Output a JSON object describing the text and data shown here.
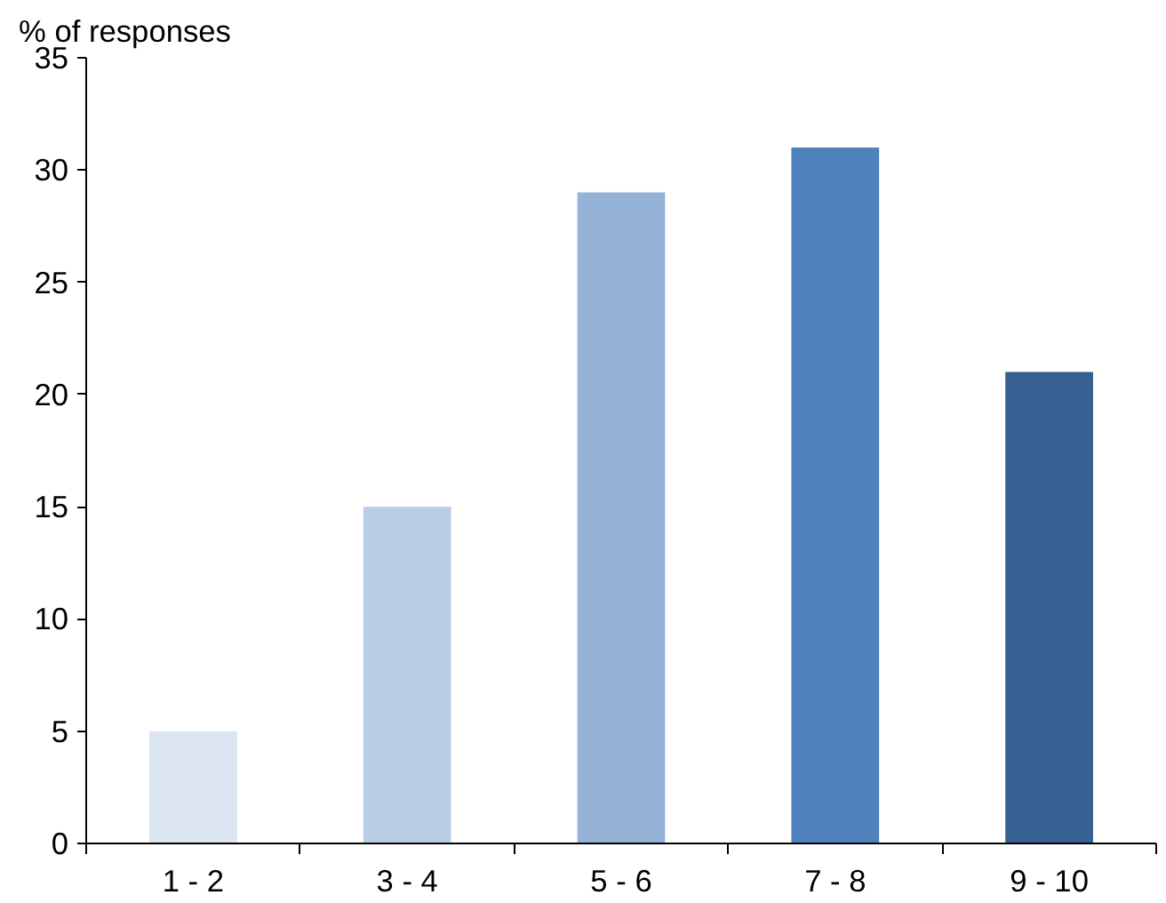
{
  "chart_data": {
    "type": "bar",
    "ylabel": "% of responses",
    "categories": [
      "1 - 2",
      "3 - 4",
      "5 - 6",
      "7 - 8",
      "9 - 10"
    ],
    "values": [
      5,
      15,
      29,
      31,
      21
    ],
    "colors": [
      "#dbe5f1",
      "#b9cde5",
      "#95b3d7",
      "#4f81bd",
      "#376092"
    ],
    "ylim": [
      0,
      35
    ],
    "yticks": [
      0,
      5,
      10,
      15,
      20,
      25,
      30,
      35
    ],
    "grid": false
  }
}
